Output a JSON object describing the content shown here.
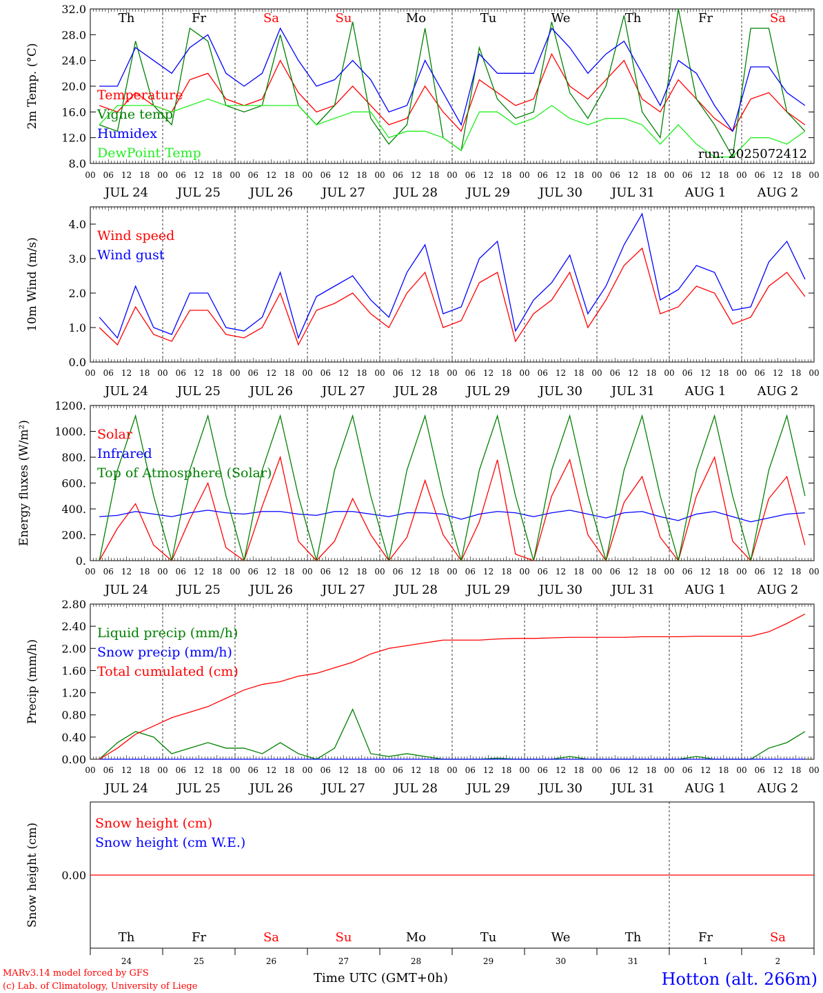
{
  "colors": {
    "red": "#ff0000",
    "green": "#008000",
    "blue": "#0000ff",
    "lime": "#22ee22",
    "black": "#000000"
  },
  "dates": [
    "JUL 24",
    "JUL 25",
    "JUL 26",
    "JUL 27",
    "JUL 28",
    "JUL 29",
    "JUL 30",
    "JUL 31",
    "AUG 1",
    "AUG 2"
  ],
  "hour_ticks": [
    "00",
    "06",
    "12",
    "18"
  ],
  "weekdays": [
    "Th",
    "Fr",
    "Sa",
    "Su",
    "Mo",
    "Tu",
    "We",
    "Th",
    "Fr",
    "Sa"
  ],
  "weekday_colors": [
    "#000000",
    "#000000",
    "#ff0000",
    "#ff0000",
    "#000000",
    "#000000",
    "#000000",
    "#000000",
    "#000000",
    "#ff0000"
  ],
  "day_numbers": [
    "24",
    "25",
    "26",
    "27",
    "28",
    "29",
    "30",
    "31",
    "1",
    "2"
  ],
  "footer": {
    "credit_line1": "MARv3.14 model forced by GFS",
    "credit_line2": "(c) Lab. of Climatology, University of Liege",
    "time_label": "Time UTC (GMT+0h)",
    "station": "Hotton (alt. 266m)"
  },
  "chart_data": [
    {
      "type": "line",
      "ylabel": "2m Temp. (°C)",
      "ylim": [
        8,
        32
      ],
      "yticks": [
        "32.0",
        "28.0",
        "24.0",
        "20.0",
        "16.0",
        "12.0",
        "8.0"
      ],
      "annotation": "run: 2025072412",
      "x_hours": [
        0,
        6,
        12,
        18,
        24,
        30,
        36,
        42,
        48,
        54,
        60,
        66,
        72,
        78,
        84,
        90,
        96,
        102,
        108,
        114,
        120,
        126,
        132,
        138,
        144,
        150,
        156,
        162,
        168,
        174,
        180,
        186,
        192,
        198,
        204,
        210,
        216,
        222,
        228,
        234
      ],
      "series": [
        {
          "name": "Temperature",
          "color": "#ff0000",
          "values": [
            17,
            16,
            19,
            17,
            16,
            21,
            22,
            18,
            17,
            18,
            24,
            19,
            16,
            17,
            20,
            17,
            14,
            15,
            20,
            16,
            13,
            21,
            19,
            17,
            18,
            25,
            20,
            18,
            21,
            24,
            18,
            16,
            21,
            18,
            15,
            13,
            18,
            19,
            16,
            14
          ]
        },
        {
          "name": "Vigne temp",
          "color": "#008000",
          "values": [
            14,
            13,
            27,
            17,
            14,
            29,
            27,
            17,
            16,
            17,
            28,
            17,
            14,
            17,
            30,
            15,
            11,
            14,
            29,
            12,
            10,
            26,
            18,
            15,
            16,
            30,
            19,
            15,
            20,
            31,
            16,
            12,
            32,
            18,
            14,
            9,
            29,
            29,
            16,
            13
          ]
        },
        {
          "name": "Humidex",
          "color": "#0000ff",
          "values": [
            20,
            20,
            26,
            24,
            22,
            26,
            28,
            22,
            20,
            22,
            29,
            24,
            20,
            21,
            24,
            21,
            16,
            17,
            24,
            19,
            14,
            25,
            22,
            22,
            22,
            29,
            26,
            22,
            25,
            27,
            22,
            17,
            24,
            22,
            17,
            13,
            23,
            23,
            19,
            17
          ]
        },
        {
          "name": "DewPoint Temp",
          "color": "#22ee22",
          "values": [
            14,
            17,
            17,
            17,
            16,
            17,
            18,
            17,
            17,
            17,
            17,
            17,
            14,
            15,
            16,
            16,
            12,
            13,
            13,
            12,
            10,
            16,
            16,
            14,
            15,
            17,
            15,
            14,
            15,
            15,
            14,
            11,
            14,
            11,
            9,
            9,
            12,
            12,
            11,
            13
          ]
        }
      ]
    },
    {
      "type": "line",
      "ylabel": "10m Wind (m/s)",
      "ylim": [
        0,
        4.5
      ],
      "yticks": [
        "4.0",
        "3.0",
        "2.0",
        "1.0",
        "0.0"
      ],
      "x_hours": [
        0,
        6,
        12,
        18,
        24,
        30,
        36,
        42,
        48,
        54,
        60,
        66,
        72,
        78,
        84,
        90,
        96,
        102,
        108,
        114,
        120,
        126,
        132,
        138,
        144,
        150,
        156,
        162,
        168,
        174,
        180,
        186,
        192,
        198,
        204,
        210,
        216,
        222,
        228,
        234
      ],
      "series": [
        {
          "name": "Wind speed",
          "color": "#ff0000",
          "values": [
            1.0,
            0.5,
            1.6,
            0.8,
            0.6,
            1.5,
            1.5,
            0.8,
            0.7,
            1.0,
            2.0,
            0.5,
            1.5,
            1.7,
            2.0,
            1.4,
            1.0,
            2.0,
            2.6,
            1.0,
            1.2,
            2.3,
            2.6,
            0.6,
            1.4,
            1.8,
            2.6,
            1.0,
            1.8,
            2.8,
            3.3,
            1.4,
            1.6,
            2.2,
            2.0,
            1.1,
            1.3,
            2.2,
            2.6,
            1.9
          ]
        },
        {
          "name": "Wind gust",
          "color": "#0000ff",
          "values": [
            1.3,
            0.7,
            2.2,
            1.0,
            0.8,
            2.0,
            2.0,
            1.0,
            0.9,
            1.3,
            2.6,
            0.7,
            1.9,
            2.2,
            2.5,
            1.8,
            1.3,
            2.6,
            3.4,
            1.4,
            1.6,
            3.0,
            3.5,
            0.9,
            1.8,
            2.3,
            3.1,
            1.4,
            2.2,
            3.4,
            4.3,
            1.8,
            2.1,
            2.8,
            2.6,
            1.5,
            1.6,
            2.9,
            3.5,
            2.4
          ]
        }
      ]
    },
    {
      "type": "line",
      "ylabel": "Energy fluxes (W/m²)",
      "ylim": [
        0,
        1200
      ],
      "yticks": [
        "1200.",
        "1000.",
        "800.",
        "600.",
        "400.",
        "200.",
        "0."
      ],
      "x_hours": [
        0,
        6,
        12,
        18,
        24,
        30,
        36,
        42,
        48,
        54,
        60,
        66,
        72,
        78,
        84,
        90,
        96,
        102,
        108,
        114,
        120,
        126,
        132,
        138,
        144,
        150,
        156,
        162,
        168,
        174,
        180,
        186,
        192,
        198,
        204,
        210,
        216,
        222,
        228,
        234
      ],
      "series": [
        {
          "name": "Solar",
          "color": "#ff0000",
          "values": [
            0,
            250,
            440,
            120,
            0,
            320,
            600,
            100,
            0,
            420,
            800,
            150,
            0,
            150,
            480,
            200,
            0,
            180,
            620,
            200,
            0,
            300,
            780,
            50,
            0,
            500,
            780,
            200,
            0,
            450,
            650,
            180,
            0,
            500,
            800,
            150,
            0,
            480,
            650,
            120
          ]
        },
        {
          "name": "Infrared",
          "color": "#0000ff",
          "values": [
            340,
            350,
            380,
            360,
            340,
            370,
            390,
            370,
            360,
            380,
            380,
            360,
            350,
            380,
            380,
            360,
            340,
            370,
            370,
            360,
            320,
            360,
            380,
            370,
            340,
            370,
            390,
            360,
            330,
            370,
            380,
            340,
            310,
            360,
            380,
            340,
            300,
            330,
            360,
            370
          ]
        },
        {
          "name": "Top of Atmosphere (Solar)",
          "color": "#008000",
          "values": [
            0,
            700,
            1120,
            500,
            0,
            700,
            1120,
            500,
            0,
            700,
            1120,
            500,
            0,
            700,
            1120,
            500,
            0,
            700,
            1120,
            500,
            0,
            700,
            1120,
            500,
            0,
            700,
            1120,
            500,
            0,
            700,
            1120,
            500,
            0,
            700,
            1120,
            500,
            0,
            700,
            1120,
            500
          ]
        }
      ]
    },
    {
      "type": "line",
      "ylabel": "Precip (mm/h)",
      "ylim": [
        0,
        2.8
      ],
      "yticks": [
        "2.80",
        "2.40",
        "2.00",
        "1.60",
        "1.20",
        "0.80",
        "0.40",
        "0.00"
      ],
      "x_hours": [
        0,
        6,
        12,
        18,
        24,
        30,
        36,
        42,
        48,
        54,
        60,
        66,
        72,
        78,
        84,
        90,
        96,
        102,
        108,
        114,
        120,
        126,
        132,
        138,
        144,
        150,
        156,
        162,
        168,
        174,
        180,
        186,
        192,
        198,
        204,
        210,
        216,
        222,
        228,
        234
      ],
      "series": [
        {
          "name": "Liquid precip (mm/h)",
          "color": "#008000",
          "values": [
            0.0,
            0.3,
            0.5,
            0.4,
            0.1,
            0.2,
            0.3,
            0.2,
            0.2,
            0.1,
            0.3,
            0.1,
            0.0,
            0.2,
            0.9,
            0.1,
            0.05,
            0.1,
            0.05,
            0.0,
            0.0,
            0.0,
            0.02,
            0.0,
            0.0,
            0.0,
            0.05,
            0.0,
            0.0,
            0.0,
            0.0,
            0.0,
            0.0,
            0.05,
            0.0,
            0.0,
            0.0,
            0.2,
            0.3,
            0.5
          ]
        },
        {
          "name": "Snow precip (mm/h)",
          "color": "#0000ff",
          "values": [
            0,
            0,
            0,
            0,
            0,
            0,
            0,
            0,
            0,
            0,
            0,
            0,
            0,
            0,
            0,
            0,
            0,
            0,
            0,
            0,
            0,
            0,
            0,
            0,
            0,
            0,
            0,
            0,
            0,
            0,
            0,
            0,
            0,
            0,
            0,
            0,
            0,
            0,
            0,
            0
          ]
        },
        {
          "name": "Total cumulated (cm)",
          "color": "#ff0000",
          "values": [
            0.0,
            0.2,
            0.45,
            0.6,
            0.75,
            0.85,
            0.95,
            1.1,
            1.25,
            1.35,
            1.4,
            1.5,
            1.55,
            1.65,
            1.75,
            1.9,
            2.0,
            2.05,
            2.1,
            2.15,
            2.15,
            2.15,
            2.17,
            2.18,
            2.18,
            2.19,
            2.2,
            2.2,
            2.2,
            2.2,
            2.21,
            2.21,
            2.21,
            2.22,
            2.22,
            2.22,
            2.22,
            2.3,
            2.45,
            2.62
          ]
        }
      ]
    },
    {
      "type": "line",
      "ylabel": "Snow height (cm)",
      "ylim": [
        -1,
        1
      ],
      "yticks": [
        "0.00"
      ],
      "x_hours": [
        0,
        240
      ],
      "series": [
        {
          "name": "Snow height (cm)",
          "color": "#ff0000",
          "values": [
            0,
            0
          ]
        },
        {
          "name": "Snow height (cm W.E.)",
          "color": "#0000ff",
          "values": [
            0,
            0
          ]
        }
      ]
    }
  ]
}
